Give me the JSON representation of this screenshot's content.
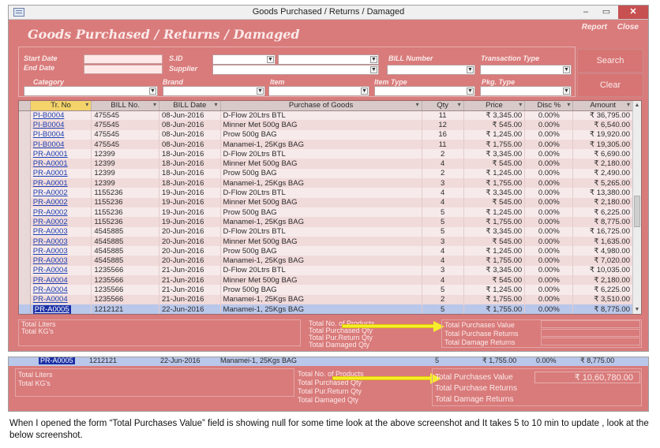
{
  "window": {
    "title": "Goods Purchased / Returns / Damaged"
  },
  "form": {
    "title": "Goods Purchased / Returns / Damaged",
    "links": {
      "report": "Report",
      "close": "Close"
    },
    "filters": {
      "start_date": "Start Date",
      "end_date": "End Date",
      "sid": "S.ID",
      "supplier": "Supplier",
      "bill_number": "BILL Number",
      "transaction_type": "Transaction Type",
      "category": "Category",
      "brand": "Brand",
      "item": "Item",
      "item_type": "Item Type",
      "pkg_type": "Pkg. Type"
    },
    "buttons": {
      "search": "Search",
      "clear": "Clear"
    }
  },
  "grid": {
    "columns": [
      "Tr. No",
      "BILL No.",
      "BILL Date",
      "Purchase of Goods",
      "Qty",
      "Price",
      "Disc %",
      "Amount"
    ],
    "rows": [
      [
        "PI-B0004",
        "475545",
        "08-Jun-2016",
        "D-Flow 20Ltrs BTL",
        "11",
        "₹ 3,345.00",
        "0.00%",
        "₹ 36,795.00"
      ],
      [
        "PI-B0004",
        "475545",
        "08-Jun-2016",
        "Minner Met 500g BAG",
        "12",
        "₹ 545.00",
        "0.00%",
        "₹ 6,540.00"
      ],
      [
        "PI-B0004",
        "475545",
        "08-Jun-2016",
        "Prow 500g BAG",
        "16",
        "₹ 1,245.00",
        "0.00%",
        "₹ 19,920.00"
      ],
      [
        "PI-B0004",
        "475545",
        "08-Jun-2016",
        "Manamei-1, 25Kgs BAG",
        "11",
        "₹ 1,755.00",
        "0.00%",
        "₹ 19,305.00"
      ],
      [
        "PR-A0001",
        "12399",
        "18-Jun-2016",
        "D-Flow 20Ltrs BTL",
        "2",
        "₹ 3,345.00",
        "0.00%",
        "₹ 6,690.00"
      ],
      [
        "PR-A0001",
        "12399",
        "18-Jun-2016",
        "Minner Met 500g BAG",
        "4",
        "₹ 545.00",
        "0.00%",
        "₹ 2,180.00"
      ],
      [
        "PR-A0001",
        "12399",
        "18-Jun-2016",
        "Prow 500g BAG",
        "2",
        "₹ 1,245.00",
        "0.00%",
        "₹ 2,490.00"
      ],
      [
        "PR-A0001",
        "12399",
        "18-Jun-2016",
        "Manamei-1, 25Kgs BAG",
        "3",
        "₹ 1,755.00",
        "0.00%",
        "₹ 5,265.00"
      ],
      [
        "PR-A0002",
        "1155236",
        "19-Jun-2016",
        "D-Flow 20Ltrs BTL",
        "4",
        "₹ 3,345.00",
        "0.00%",
        "₹ 13,380.00"
      ],
      [
        "PR-A0002",
        "1155236",
        "19-Jun-2016",
        "Minner Met 500g BAG",
        "4",
        "₹ 545.00",
        "0.00%",
        "₹ 2,180.00"
      ],
      [
        "PR-A0002",
        "1155236",
        "19-Jun-2016",
        "Prow 500g BAG",
        "5",
        "₹ 1,245.00",
        "0.00%",
        "₹ 6,225.00"
      ],
      [
        "PR-A0002",
        "1155236",
        "19-Jun-2016",
        "Manamei-1, 25Kgs BAG",
        "5",
        "₹ 1,755.00",
        "0.00%",
        "₹ 8,775.00"
      ],
      [
        "PR-A0003",
        "4545885",
        "20-Jun-2016",
        "D-Flow 20Ltrs BTL",
        "5",
        "₹ 3,345.00",
        "0.00%",
        "₹ 16,725.00"
      ],
      [
        "PR-A0003",
        "4545885",
        "20-Jun-2016",
        "Minner Met 500g BAG",
        "3",
        "₹ 545.00",
        "0.00%",
        "₹ 1,635.00"
      ],
      [
        "PR-A0003",
        "4545885",
        "20-Jun-2016",
        "Prow 500g BAG",
        "4",
        "₹ 1,245.00",
        "0.00%",
        "₹ 4,980.00"
      ],
      [
        "PR-A0003",
        "4545885",
        "20-Jun-2016",
        "Manamei-1, 25Kgs BAG",
        "4",
        "₹ 1,755.00",
        "0.00%",
        "₹ 7,020.00"
      ],
      [
        "PR-A0004",
        "1235566",
        "21-Jun-2016",
        "D-Flow 20Ltrs BTL",
        "3",
        "₹ 3,345.00",
        "0.00%",
        "₹ 10,035.00"
      ],
      [
        "PR-A0004",
        "1235566",
        "21-Jun-2016",
        "Minner Met 500g BAG",
        "4",
        "₹ 545.00",
        "0.00%",
        "₹ 2,180.00"
      ],
      [
        "PR-A0004",
        "1235566",
        "21-Jun-2016",
        "Prow 500g BAG",
        "5",
        "₹ 1,245.00",
        "0.00%",
        "₹ 6,225.00"
      ],
      [
        "PR-A0004",
        "1235566",
        "21-Jun-2016",
        "Manamei-1, 25Kgs BAG",
        "2",
        "₹ 1,755.00",
        "0.00%",
        "₹ 3,510.00"
      ],
      [
        "PR-A0005",
        "1212121",
        "22-Jun-2016",
        "Manamei-1, 25Kgs BAG",
        "5",
        "₹ 1,755.00",
        "0.00%",
        "₹ 8,775.00"
      ]
    ],
    "selected_row_index": 20
  },
  "footer": {
    "total_liters": "Total Liters",
    "total_kgs": "Total KG's",
    "total_no_products": "Total No. of Products",
    "total_purchased_qty": "Total Purchased Qty",
    "total_pur_return_qty": "Total Pur.Return Qty",
    "total_damaged_qty": "Total Damaged Qty",
    "total_purchases_value": "Total Purchases Value",
    "total_purchase_returns": "Total Purchase Returns",
    "total_damage_returns": "Total Damage Returns"
  },
  "panel2": {
    "row": {
      "trno": "PR-A0005",
      "bill": "1212121",
      "date": "22-Jun-2016",
      "goods": "Manamei-1, 25Kgs BAG",
      "qty": "5",
      "price": "₹ 1,755.00",
      "disc": "0.00%",
      "amount": "₹ 8,775.00"
    },
    "total_purchases_value": "₹ 10,60,780.00"
  },
  "caption": "When I opened the form “Total Purchases Value” field is showing null for some time look at the above screenshot and It takes 5 to 10 min to update , look at the below screenshot.",
  "colors": {
    "form_bg": "#d97b7b",
    "selected_row": "#b9c7ea",
    "arrow": "#f6ee2a",
    "link": "#1b3fb0"
  }
}
